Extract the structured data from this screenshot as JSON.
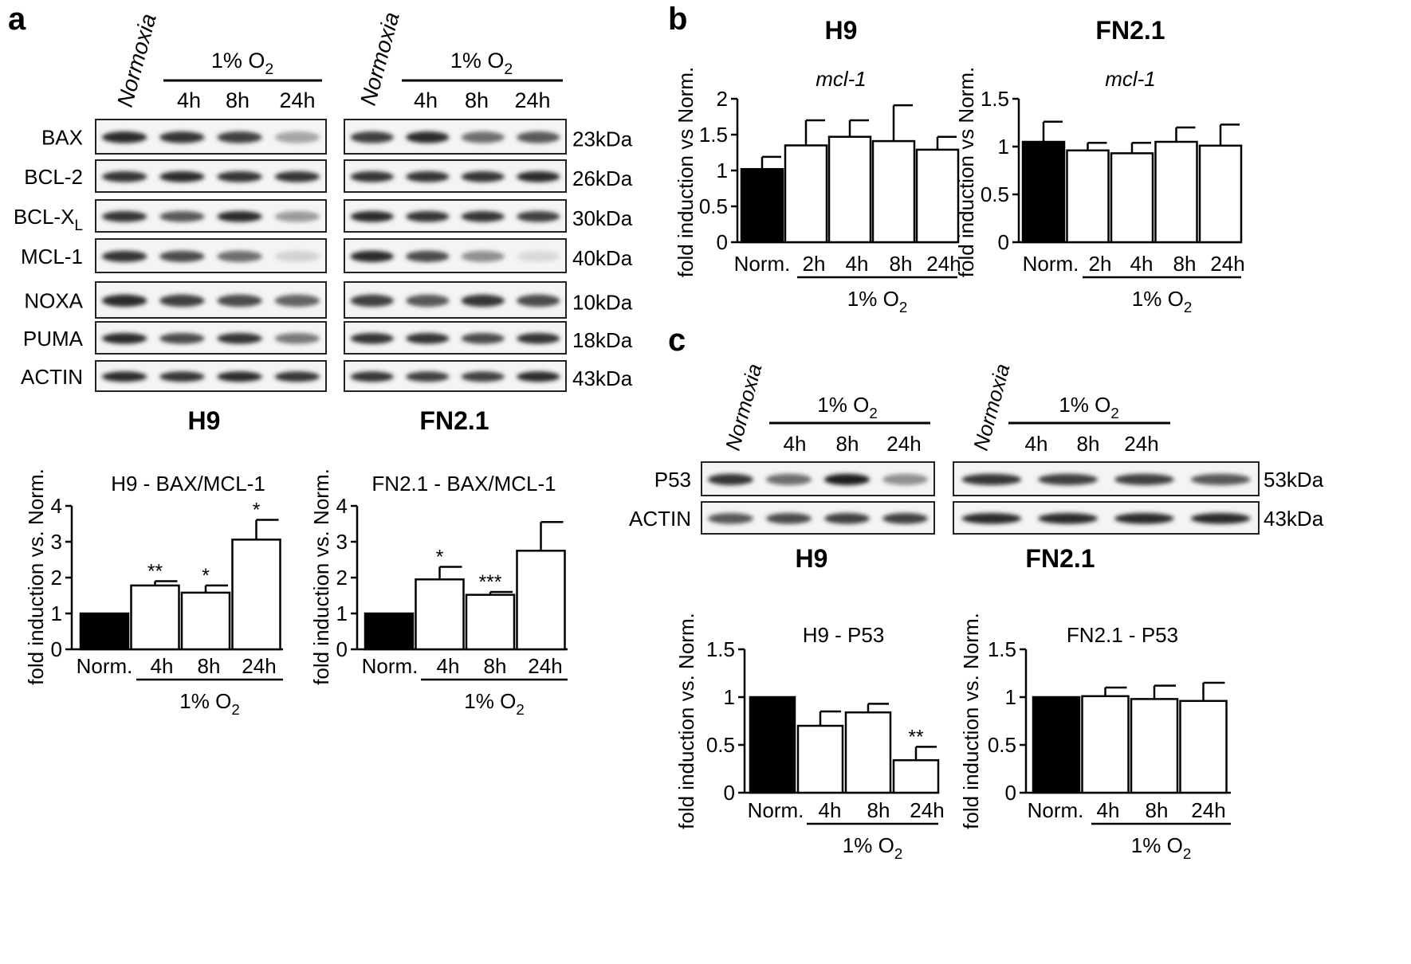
{
  "figure": {
    "panel_a": {
      "letter": "a",
      "blot_header": {
        "normoxia": "Normoxia",
        "hypoxia_label": "1% O",
        "hypoxia_sub": "2",
        "times": [
          "4h",
          "8h",
          "24h"
        ]
      },
      "proteins": [
        {
          "name": "BAX",
          "kda": "23kDa"
        },
        {
          "name": "BCL-2",
          "kda": "26kDa"
        },
        {
          "name": "BCL-X",
          "sub": "L",
          "kda": "30kDa"
        },
        {
          "name": "MCL-1",
          "kda": "40kDa"
        },
        {
          "name": "NOXA",
          "kda": "10kDa"
        },
        {
          "name": "PUMA",
          "kda": "18kDa"
        },
        {
          "name": "ACTIN",
          "kda": "43kDa"
        }
      ],
      "band_intensity": {
        "H9": [
          [
            0.9,
            0.85,
            0.8,
            0.35
          ],
          [
            0.85,
            0.9,
            0.85,
            0.85
          ],
          [
            0.85,
            0.7,
            0.9,
            0.4
          ],
          [
            0.85,
            0.75,
            0.6,
            0.15
          ],
          [
            0.9,
            0.8,
            0.75,
            0.65
          ],
          [
            0.9,
            0.75,
            0.85,
            0.55
          ],
          [
            0.9,
            0.85,
            0.9,
            0.85
          ]
        ],
        "FN2.1": [
          [
            0.8,
            0.9,
            0.6,
            0.7
          ],
          [
            0.85,
            0.85,
            0.85,
            0.9
          ],
          [
            0.9,
            0.85,
            0.85,
            0.8
          ],
          [
            0.9,
            0.75,
            0.45,
            0.12
          ],
          [
            0.8,
            0.7,
            0.85,
            0.75
          ],
          [
            0.85,
            0.85,
            0.75,
            0.85
          ],
          [
            0.85,
            0.8,
            0.8,
            0.9
          ]
        ]
      },
      "cell_labels": [
        "H9",
        "FN2.1"
      ]
    },
    "panel_b": {
      "letter": "b"
    },
    "panel_c": {
      "letter": "c",
      "blot_header": {
        "normoxia": "Normoxia",
        "hypoxia_label": "1% O",
        "hypoxia_sub": "2",
        "times": [
          "4h",
          "8h",
          "24h"
        ]
      },
      "proteins": [
        {
          "name": "P53",
          "kda": "53kDa"
        },
        {
          "name": "ACTIN",
          "kda": "43kDa"
        }
      ],
      "band_intensity": {
        "H9": [
          [
            0.85,
            0.6,
            0.95,
            0.45
          ],
          [
            0.7,
            0.75,
            0.8,
            0.8
          ]
        ],
        "FN2.1": [
          [
            0.85,
            0.8,
            0.8,
            0.7
          ],
          [
            0.9,
            0.9,
            0.9,
            0.9
          ]
        ]
      },
      "cell_labels": [
        "H9",
        "FN2.1"
      ]
    }
  },
  "chart_data": [
    {
      "id": "a-h9",
      "type": "bar",
      "title": "H9 - BAX/MCL-1",
      "ylabel": "fold induction vs. Norm.",
      "categories": [
        "Norm.",
        "4h",
        "8h",
        "24h"
      ],
      "values": [
        1.0,
        1.78,
        1.58,
        3.06
      ],
      "errors": [
        0,
        0.12,
        0.2,
        0.55
      ],
      "significance": [
        "",
        "**",
        "*",
        "*"
      ],
      "group_label": "1% O",
      "group_sub": "2",
      "ylim": [
        0,
        4
      ],
      "yticks": [
        0,
        1,
        2,
        3,
        4
      ],
      "ytick_labels": [
        "0",
        "1",
        "2",
        "3",
        "4"
      ]
    },
    {
      "id": "a-fn21",
      "type": "bar",
      "title": "FN2.1 - BAX/MCL-1",
      "ylabel": "fold induction vs. Norm.",
      "categories": [
        "Norm.",
        "4h",
        "8h",
        "24h"
      ],
      "values": [
        1.0,
        1.95,
        1.52,
        2.75
      ],
      "errors": [
        0,
        0.35,
        0.08,
        0.8
      ],
      "significance": [
        "",
        "*",
        "***",
        ""
      ],
      "group_label": "1% O",
      "group_sub": "2",
      "ylim": [
        0,
        4
      ],
      "yticks": [
        0,
        1,
        2,
        3,
        4
      ],
      "ytick_labels": [
        "0",
        "1",
        "2",
        "3",
        "4"
      ]
    },
    {
      "id": "b-h9",
      "type": "bar",
      "title": "H9",
      "subtitle": "mcl-1",
      "ylabel": "fold induction vs Norm.",
      "categories": [
        "Norm.",
        "2h",
        "4h",
        "8h",
        "24h"
      ],
      "values": [
        1.02,
        1.35,
        1.47,
        1.41,
        1.29
      ],
      "errors": [
        0.17,
        0.35,
        0.23,
        0.5,
        0.18
      ],
      "significance": [
        "",
        "",
        "",
        "",
        ""
      ],
      "group_label": "1% O",
      "group_sub": "2",
      "ylim": [
        0,
        2
      ],
      "yticks": [
        0,
        0.5,
        1,
        1.5,
        2
      ],
      "ytick_labels": [
        "0",
        "0.5",
        "1",
        "1.5",
        "2"
      ]
    },
    {
      "id": "b-fn21",
      "type": "bar",
      "title": "FN2.1",
      "subtitle": "mcl-1",
      "ylabel": "fold induction vs Norm.",
      "categories": [
        "Norm.",
        "2h",
        "4h",
        "8h",
        "24h"
      ],
      "values": [
        1.05,
        0.96,
        0.93,
        1.05,
        1.01
      ],
      "errors": [
        0.21,
        0.08,
        0.11,
        0.15,
        0.22
      ],
      "significance": [
        "",
        "",
        "",
        "",
        ""
      ],
      "group_label": "1% O",
      "group_sub": "2",
      "ylim": [
        0,
        1.5
      ],
      "yticks": [
        0,
        0.5,
        1,
        1.5
      ],
      "ytick_labels": [
        "0",
        "0.5",
        "1",
        "1.5"
      ]
    },
    {
      "id": "c-h9",
      "type": "bar",
      "title": "H9 - P53",
      "ylabel": "fold induction vs. Norm.",
      "categories": [
        "Norm.",
        "4h",
        "8h",
        "24h"
      ],
      "values": [
        1.0,
        0.7,
        0.84,
        0.34
      ],
      "errors": [
        0,
        0.15,
        0.09,
        0.14
      ],
      "significance": [
        "",
        "",
        "",
        "**"
      ],
      "group_label": "1% O",
      "group_sub": "2",
      "ylim": [
        0,
        1.5
      ],
      "yticks": [
        0,
        0.5,
        1,
        1.5
      ],
      "ytick_labels": [
        "0",
        "0.5",
        "1",
        "1.5"
      ]
    },
    {
      "id": "c-fn21",
      "type": "bar",
      "title": "FN2.1 - P53",
      "ylabel": "fold induction vs. Norm.",
      "categories": [
        "Norm.",
        "4h",
        "8h",
        "24h"
      ],
      "values": [
        1.0,
        1.01,
        0.98,
        0.96
      ],
      "errors": [
        0,
        0.09,
        0.14,
        0.19
      ],
      "significance": [
        "",
        "",
        "",
        ""
      ],
      "group_label": "1% O",
      "group_sub": "2",
      "ylim": [
        0,
        1.5
      ],
      "yticks": [
        0,
        0.5,
        1,
        1.5
      ],
      "ytick_labels": [
        "0",
        "0.5",
        "1",
        "1.5"
      ]
    }
  ]
}
